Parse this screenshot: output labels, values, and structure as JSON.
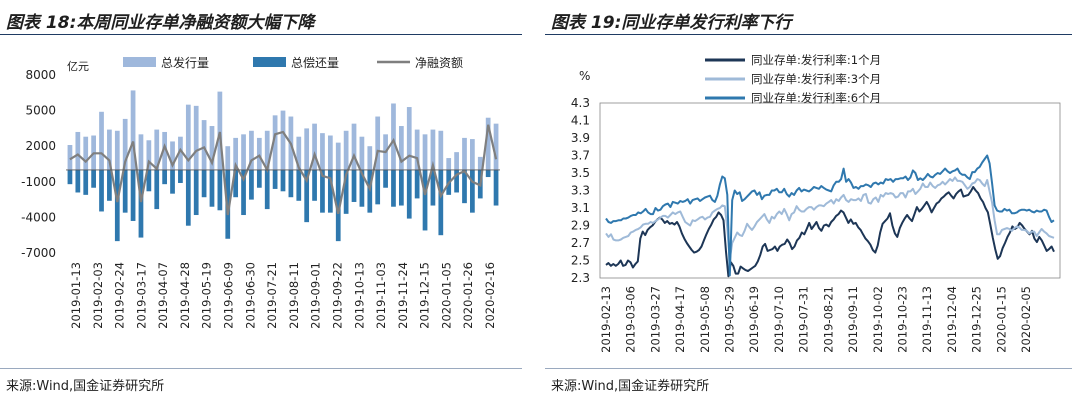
{
  "left": {
    "title": "图表 18:本周同业存单净融资额大幅下降",
    "source": "来源:Wind,国金证券研究所"
  },
  "right": {
    "title": "图表 19:同业存单发行利率下行",
    "source": "来源:Wind,国金证券研究所"
  },
  "chart_data": [
    {
      "type": "bar",
      "unit_label": "亿元",
      "ylim": [
        -7000,
        8000
      ],
      "yticks": [
        8000,
        5000,
        2000,
        -1000,
        -4000,
        -7000
      ],
      "xtick_labels": [
        "2019-01-13",
        "2019-02-03",
        "2019-02-24",
        "2019-03-17",
        "2019-04-07",
        "2019-04-28",
        "2019-05-19",
        "2019-06-09",
        "2019-06-30",
        "2019-07-21",
        "2019-08-11",
        "2019-09-01",
        "2019-09-22",
        "2019-10-13",
        "2019-11-03",
        "2019-11-24",
        "2019-12-15",
        "2020-01-05",
        "2020-01-26",
        "2020-02-16"
      ],
      "legend": "top",
      "colors": {
        "issue": "#9fb8dc",
        "repay": "#2f78ae",
        "net": "#7f7f7f"
      },
      "series": [
        {
          "name": "总发行量",
          "kind": "bar",
          "values": [
            2100,
            3200,
            2800,
            2900,
            4900,
            3400,
            3300,
            4300,
            6700,
            3000,
            2500,
            3400,
            3200,
            2400,
            2800,
            5500,
            5400,
            4200,
            3700,
            6600,
            2000,
            2700,
            3000,
            3300,
            2700,
            3300,
            4600,
            5000,
            4500,
            2800,
            3500,
            3900,
            3100,
            2900,
            2300,
            3300,
            3900,
            2800,
            2000,
            4500,
            3000,
            5600,
            3700,
            5300,
            3400,
            3000,
            3400,
            3300,
            1000,
            1500,
            2700,
            2600,
            1100,
            4400,
            3900
          ]
        },
        {
          "name": "总偿还量",
          "kind": "bar",
          "values": [
            -1200,
            -1900,
            -2100,
            -1500,
            -3500,
            -2600,
            -6000,
            -3600,
            -4300,
            -5700,
            -1800,
            -3300,
            -1200,
            -2000,
            -1100,
            -4700,
            -3800,
            -2300,
            -3100,
            -3400,
            -5800,
            -2300,
            -3800,
            -2500,
            -1500,
            -3300,
            -1600,
            -1800,
            -2300,
            -2600,
            -4400,
            -2600,
            -3600,
            -3600,
            -6000,
            -3700,
            -2700,
            -3100,
            -3600,
            -2900,
            -1500,
            -3100,
            -3000,
            -4100,
            -2400,
            -5100,
            -3000,
            -5500,
            -2100,
            -1900,
            -2800,
            -3600,
            -2400,
            -600,
            -3000
          ]
        },
        {
          "name": "净融资额",
          "kind": "line",
          "values": [
            900,
            1300,
            700,
            1400,
            1400,
            800,
            -2700,
            700,
            2400,
            -2700,
            700,
            100,
            2000,
            400,
            1700,
            800,
            1600,
            1900,
            600,
            3200,
            -3800,
            400,
            -800,
            800,
            1200,
            0,
            3000,
            3200,
            2200,
            200,
            -900,
            1300,
            -500,
            -700,
            -3700,
            -400,
            1200,
            -300,
            -1600,
            1600,
            1500,
            2500,
            700,
            1200,
            1000,
            -2100,
            400,
            -2200,
            -1100,
            -400,
            -100,
            -1000,
            -1300,
            3800,
            900
          ]
        }
      ]
    },
    {
      "type": "line",
      "unit_label": "%",
      "ylim": [
        2.3,
        4.3
      ],
      "yticks": [
        4.3,
        4.1,
        3.9,
        3.7,
        3.5,
        3.3,
        3.1,
        2.9,
        2.7,
        2.5,
        2.3
      ],
      "xtick_labels": [
        "2019-02-13",
        "2019-03-06",
        "2019-03-27",
        "2019-04-17",
        "2019-05-08",
        "2019-05-29",
        "2019-06-19",
        "2019-07-10",
        "2019-07-31",
        "2019-08-21",
        "2019-09-11",
        "2019-10-02",
        "2019-10-23",
        "2019-11-13",
        "2019-12-04",
        "2019-12-25",
        "2020-01-15",
        "2020-02-05"
      ],
      "legend": "top-left",
      "series": [
        {
          "name": "同业存单:发行利率:1个月",
          "color": "#1d3656",
          "values": [
            2.45,
            2.47,
            2.44,
            2.46,
            2.44,
            2.46,
            2.5,
            2.44,
            2.45,
            2.5,
            2.48,
            2.42,
            2.46,
            2.49,
            2.75,
            2.83,
            2.79,
            2.85,
            2.88,
            2.9,
            2.94,
            2.97,
            2.99,
            2.97,
            2.93,
            2.95,
            2.92,
            2.93,
            2.91,
            2.94,
            2.89,
            2.81,
            2.75,
            2.7,
            2.66,
            2.62,
            2.59,
            2.6,
            2.62,
            2.66,
            2.73,
            2.8,
            2.86,
            2.91,
            2.97,
            3.0,
            3.05,
            3.02,
            2.96,
            2.6,
            2.32,
            2.48,
            2.44,
            2.35,
            2.35,
            2.43,
            2.41,
            2.39,
            2.38,
            2.4,
            2.42,
            2.44,
            2.49,
            2.56,
            2.66,
            2.69,
            2.61,
            2.62,
            2.63,
            2.66,
            2.61,
            2.66,
            2.68,
            2.69,
            2.74,
            2.7,
            2.63,
            2.66,
            2.73,
            2.76,
            2.82,
            2.8,
            2.86,
            2.93,
            2.86,
            2.9,
            2.94,
            2.87,
            2.84,
            2.9,
            2.91,
            2.89,
            2.94,
            2.97,
            3.01,
            3.03,
            3.07,
            3.05,
            2.99,
            2.93,
            2.97,
            2.92,
            2.93,
            2.88,
            2.85,
            2.8,
            2.75,
            2.72,
            2.68,
            2.62,
            2.59,
            2.67,
            2.82,
            2.92,
            2.95,
            2.98,
            3.04,
            2.9,
            2.81,
            2.77,
            2.87,
            2.93,
            2.98,
            3.02,
            2.98,
            2.95,
            3.03,
            3.11,
            3.06,
            3.09,
            3.13,
            3.17,
            3.12,
            3.05,
            3.1,
            3.15,
            3.17,
            3.21,
            3.23,
            3.26,
            3.28,
            3.24,
            3.21,
            3.26,
            3.29,
            3.31,
            3.23,
            3.24,
            3.25,
            3.29,
            3.34,
            3.3,
            3.27,
            3.21,
            3.17,
            3.1,
            3.05,
            2.91,
            2.76,
            2.63,
            2.52,
            2.55,
            2.64,
            2.7,
            2.77,
            2.82,
            2.89,
            2.86,
            2.88,
            2.93,
            2.9,
            2.86,
            2.83,
            2.8,
            2.84,
            2.75,
            2.71,
            2.77,
            2.73,
            2.67,
            2.61,
            2.63,
            2.66,
            2.6
          ]
        },
        {
          "name": "同业存单:发行利率:3个月",
          "color": "#9fbad8",
          "values": [
            2.81,
            2.77,
            2.8,
            2.74,
            2.73,
            2.73,
            2.74,
            2.76,
            2.77,
            2.78,
            2.82,
            2.83,
            2.85,
            2.86,
            2.88,
            2.91,
            2.92,
            2.92,
            2.94,
            2.93,
            2.95,
            2.97,
            2.99,
            3.01,
            3.01,
            2.99,
            3.02,
            3.05,
            3.03,
            3.05,
            3.06,
            3.0,
            2.94,
            2.92,
            2.9,
            2.96,
            2.95,
            2.97,
            2.99,
            3.0,
            2.97,
            2.99,
            3.0,
            3.05,
            3.07,
            3.09,
            3.1,
            3.13,
            3.12,
            2.87,
            2.51,
            2.7,
            2.76,
            2.82,
            2.79,
            2.78,
            2.84,
            2.92,
            2.88,
            2.85,
            2.89,
            2.94,
            2.97,
            3.0,
            3.03,
            2.97,
            2.93,
            3.0,
            2.98,
            3.03,
            3.06,
            3.03,
            3.09,
            3.03,
            2.96,
            3.03,
            3.05,
            3.12,
            3.08,
            3.06,
            3.06,
            3.09,
            3.11,
            3.11,
            3.08,
            3.11,
            3.13,
            3.13,
            3.12,
            3.15,
            3.17,
            3.19,
            3.15,
            3.2,
            3.18,
            3.22,
            3.25,
            3.19,
            3.17,
            3.2,
            3.19,
            3.19,
            3.21,
            3.18,
            3.25,
            3.26,
            3.16,
            3.15,
            3.2,
            3.22,
            3.17,
            3.25,
            3.23,
            3.27,
            3.26,
            3.27,
            3.26,
            3.22,
            3.23,
            3.27,
            3.27,
            3.22,
            3.29,
            3.29,
            3.32,
            3.26,
            3.29,
            3.32,
            3.38,
            3.34,
            3.34,
            3.39,
            3.35,
            3.33,
            3.36,
            3.37,
            3.4,
            3.37,
            3.4,
            3.43,
            3.41,
            3.45,
            3.41,
            3.41,
            3.4,
            3.36,
            3.32,
            3.34,
            3.38,
            3.39,
            3.43,
            3.42,
            3.38,
            3.35,
            3.42,
            3.29,
            3.16,
            2.96,
            2.8,
            2.8,
            2.85,
            2.86,
            2.87,
            2.86,
            2.84,
            2.87,
            2.89,
            2.88,
            2.85,
            2.85,
            2.84,
            2.81,
            2.83,
            2.83,
            2.78,
            2.82,
            2.86,
            2.83,
            2.81,
            2.78,
            2.77,
            2.76
          ]
        },
        {
          "name": "同业存单:发行利率:6个月",
          "color": "#2f78ae",
          "values": [
            2.98,
            2.94,
            2.93,
            2.95,
            2.95,
            2.96,
            2.96,
            2.98,
            2.98,
            2.99,
            3.01,
            3.02,
            3.02,
            3.05,
            3.04,
            3.06,
            3.09,
            3.05,
            3.03,
            3.03,
            3.1,
            3.07,
            3.08,
            3.12,
            3.14,
            3.15,
            3.11,
            3.17,
            3.16,
            3.15,
            3.18,
            3.17,
            3.18,
            3.2,
            3.15,
            3.19,
            3.2,
            3.21,
            3.18,
            3.2,
            3.22,
            3.23,
            3.24,
            3.19,
            3.17,
            3.24,
            3.37,
            3.46,
            3.44,
            3.25,
            2.33,
            3.19,
            3.3,
            3.26,
            3.28,
            3.18,
            3.2,
            3.23,
            3.26,
            3.29,
            3.3,
            3.25,
            3.28,
            3.2,
            3.24,
            3.25,
            3.25,
            3.3,
            3.3,
            3.32,
            3.28,
            3.28,
            3.32,
            3.26,
            3.23,
            3.27,
            3.25,
            3.3,
            3.33,
            3.29,
            3.31,
            3.3,
            3.29,
            3.31,
            3.34,
            3.33,
            3.32,
            3.35,
            3.33,
            3.31,
            3.3,
            3.29,
            3.36,
            3.4,
            3.4,
            3.43,
            3.55,
            3.4,
            3.43,
            3.39,
            3.33,
            3.34,
            3.32,
            3.35,
            3.35,
            3.37,
            3.36,
            3.34,
            3.38,
            3.39,
            3.37,
            3.39,
            3.38,
            3.43,
            3.42,
            3.43,
            3.4,
            3.43,
            3.43,
            3.44,
            3.44,
            3.46,
            3.42,
            3.45,
            3.53,
            3.5,
            3.42,
            3.44,
            3.42,
            3.45,
            3.49,
            3.46,
            3.45,
            3.48,
            3.5,
            3.49,
            3.52,
            3.55,
            3.52,
            3.5,
            3.52,
            3.53,
            3.55,
            3.5,
            3.48,
            3.48,
            3.45,
            3.43,
            3.51,
            3.51,
            3.55,
            3.57,
            3.62,
            3.66,
            3.7,
            3.61,
            3.38,
            3.13,
            3.07,
            3.06,
            3.06,
            3.09,
            3.07,
            3.08,
            3.04,
            3.04,
            3.05,
            3.07,
            3.08,
            3.08,
            3.07,
            3.08,
            3.06,
            3.05,
            3.07,
            3.06,
            3.06,
            3.08,
            3.07,
            3.0,
            2.94,
            2.96
          ]
        }
      ]
    }
  ]
}
